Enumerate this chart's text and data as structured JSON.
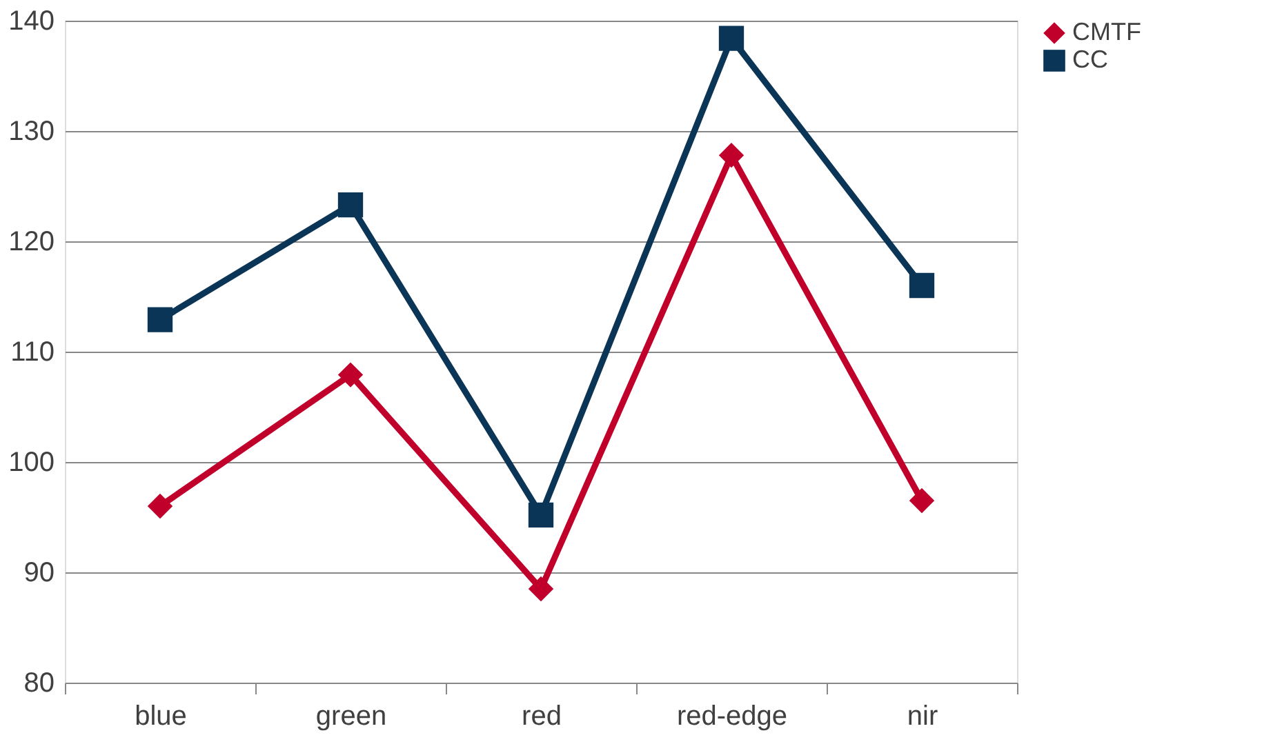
{
  "chart_data": {
    "type": "line",
    "categories": [
      "blue",
      "green",
      "red",
      "red-edge",
      "nir"
    ],
    "series": [
      {
        "name": "CMTF",
        "color": "#c0002a",
        "marker": "diamond",
        "values": [
          96.0,
          107.9,
          88.5,
          127.8,
          96.5
        ]
      },
      {
        "name": "CC",
        "color": "#0b3556",
        "marker": "square",
        "values": [
          112.9,
          123.3,
          95.2,
          138.4,
          116.0
        ]
      }
    ],
    "ylim": [
      80,
      140
    ],
    "yticks": [
      80,
      90,
      100,
      110,
      120,
      130,
      140
    ],
    "grid": "y",
    "legend": "right",
    "line_style": "solid"
  }
}
